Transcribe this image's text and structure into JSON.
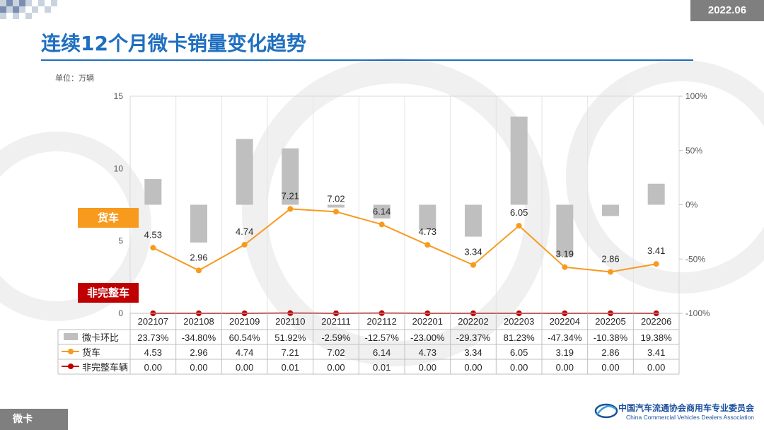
{
  "header": {
    "date": "2022.06",
    "title": "连续12个月微卡销量变化趋势",
    "unit": "单位：万辆"
  },
  "labels": {
    "truck": "货车",
    "non_truck": "非完整车"
  },
  "footer": {
    "tab": "微卡",
    "org_cn": "中国汽车流通协会商用车专业委员会",
    "org_en": "China Commercial Vehicles Dealers Association"
  },
  "colors": {
    "bar": "#bfbfbf",
    "truck_line": "#f79a1e",
    "non_truck_line": "#c00000",
    "title": "#1f6fc0"
  },
  "chart_data": {
    "type": "bar",
    "categories": [
      "202107",
      "202108",
      "202109",
      "202110",
      "202111",
      "202112",
      "202201",
      "202202",
      "202203",
      "202204",
      "202205",
      "202206"
    ],
    "left_axis": {
      "min": 0,
      "max": 15,
      "ticks": [
        "0",
        "5",
        "10",
        "15"
      ]
    },
    "right_axis": {
      "min": -100,
      "max": 100,
      "ticks": [
        "-100%",
        "-50%",
        "0%",
        "50%",
        "100%"
      ]
    },
    "series": [
      {
        "name": "微卡环比",
        "type": "bar",
        "axis": "right",
        "values": [
          23.73,
          -34.8,
          60.54,
          51.92,
          -2.59,
          -12.57,
          -23.0,
          -29.37,
          81.23,
          -47.34,
          -10.38,
          19.38
        ],
        "labels": [
          "23.73%",
          "-34.80%",
          "60.54%",
          "51.92%",
          "-2.59%",
          "-12.57%",
          "-23.00%",
          "-29.37%",
          "81.23%",
          "-47.34%",
          "-10.38%",
          "19.38%"
        ]
      },
      {
        "name": "货车",
        "type": "line",
        "axis": "left",
        "values": [
          4.53,
          2.96,
          4.74,
          7.21,
          7.02,
          6.14,
          4.73,
          3.34,
          6.05,
          3.19,
          2.86,
          3.41
        ],
        "labels": [
          "4.53",
          "2.96",
          "4.74",
          "7.21",
          "7.02",
          "6.14",
          "4.73",
          "3.34",
          "6.05",
          "3.19",
          "2.86",
          "3.41"
        ]
      },
      {
        "name": "非完整车辆",
        "type": "line",
        "axis": "left",
        "values": [
          0.0,
          0.0,
          0.0,
          0.01,
          0.0,
          0.01,
          0.0,
          0.0,
          0.0,
          0.0,
          0.0,
          0.0
        ],
        "labels": [
          "0.00",
          "0.00",
          "0.00",
          "0.01",
          "0.00",
          "0.01",
          "0.00",
          "0.00",
          "0.00",
          "0.00",
          "0.00",
          "0.00"
        ]
      }
    ],
    "grid": true,
    "legend": "data-table"
  }
}
